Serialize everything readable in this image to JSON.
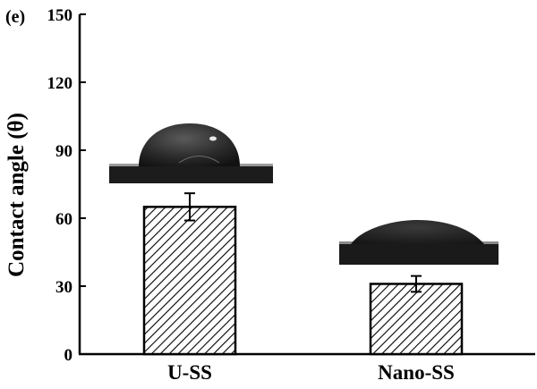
{
  "chart_data": {
    "type": "bar",
    "panel_label": "(e)",
    "ylabel": "Contact angle (θ)",
    "xlabel": "",
    "ylim": [
      0,
      150
    ],
    "yticks": [
      0,
      30,
      60,
      90,
      120,
      150
    ],
    "categories": [
      "U-SS",
      "Nano-SS"
    ],
    "values": [
      65,
      31
    ],
    "errors": [
      6,
      3.5
    ],
    "bar_fill": "hatched",
    "bar_color": "#000000",
    "grid": false,
    "legend": "none",
    "insets": [
      "water-droplet-photo",
      "water-droplet-photo"
    ]
  }
}
